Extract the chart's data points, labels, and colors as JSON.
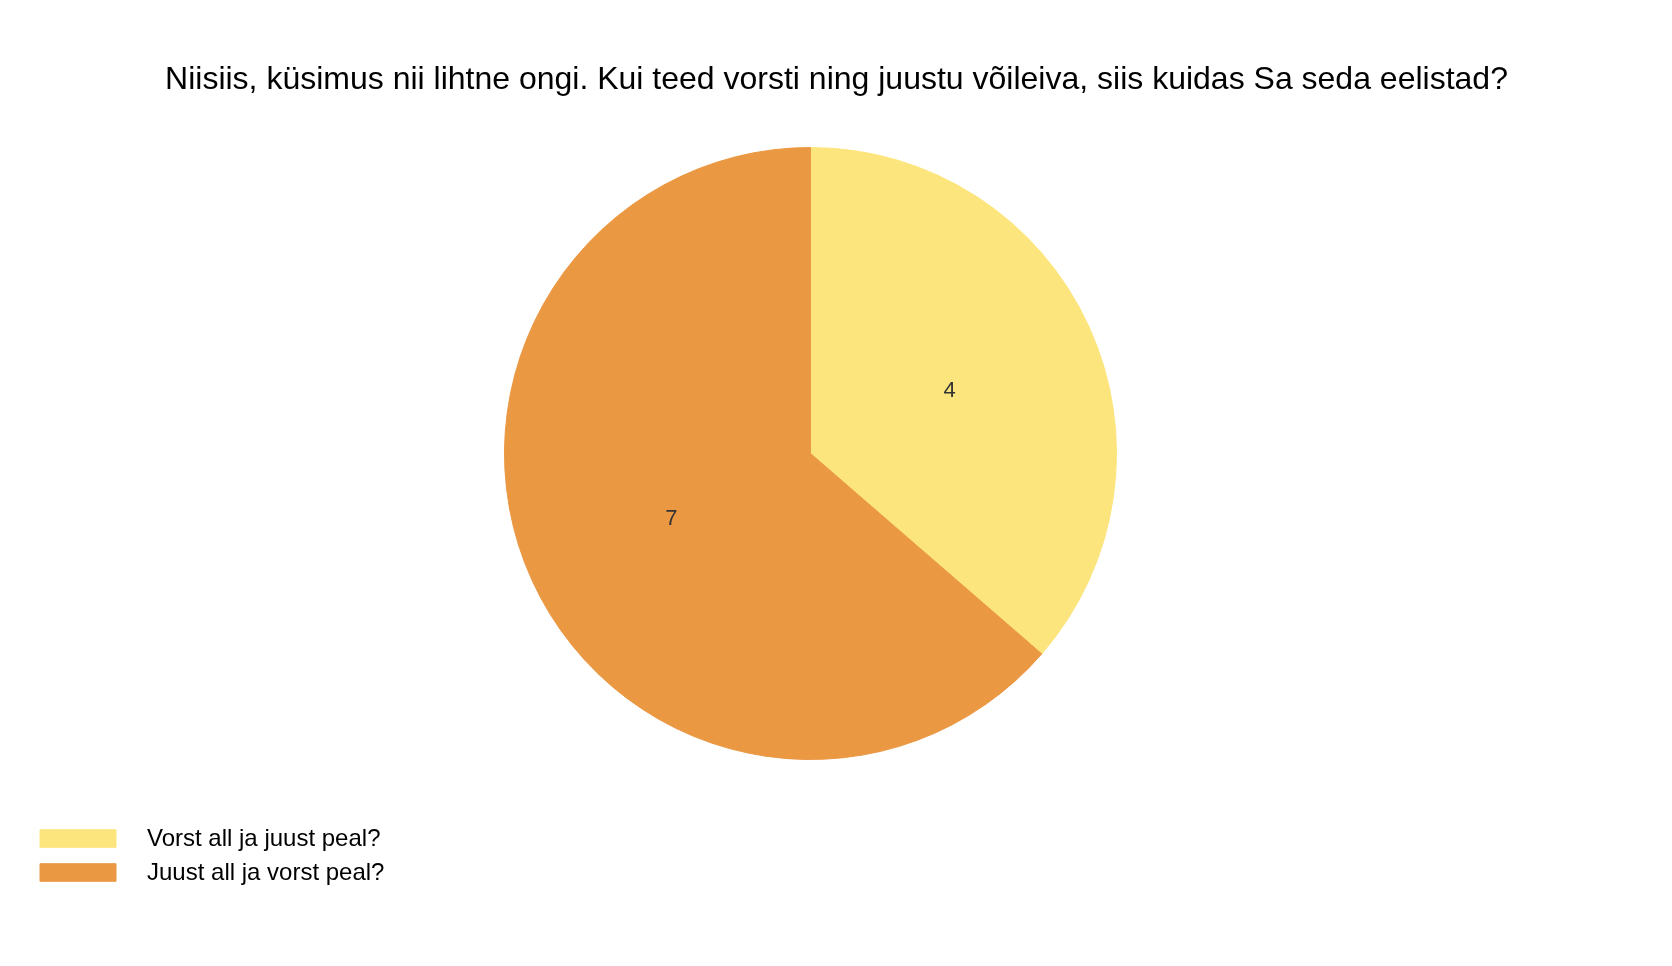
{
  "chart_data": {
    "type": "pie",
    "title": "Niisiis, küsimus nii lihtne ongi. Kui teed vorsti ning juustu võileiva, siis kuidas Sa seda eelistad?",
    "categories": [
      "Vorst all ja juust peal?",
      "Juust all ja vorst peal?"
    ],
    "values": [
      4,
      7
    ],
    "colors": [
      "#fde57e",
      "#eb9843"
    ],
    "data_labels": true,
    "legend": "bottom left"
  }
}
